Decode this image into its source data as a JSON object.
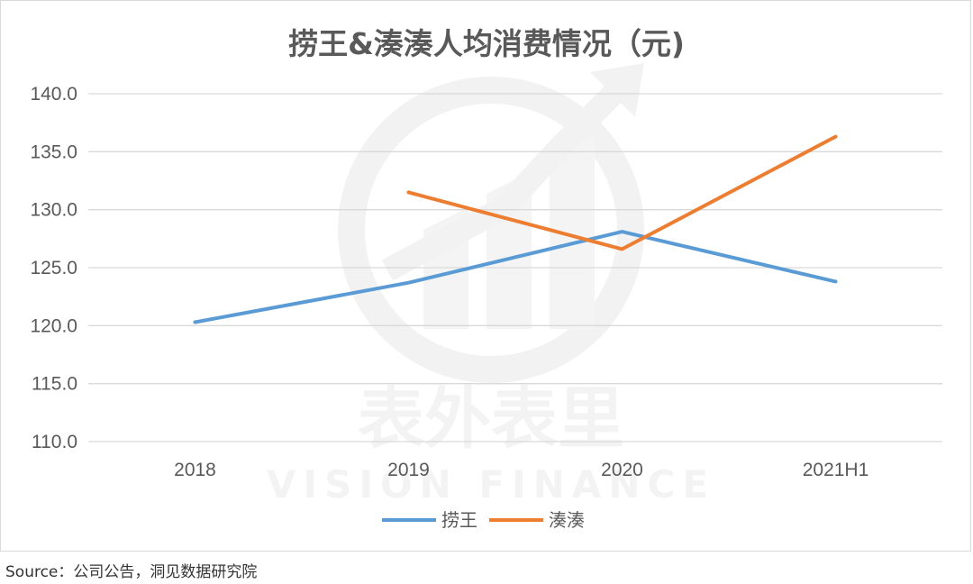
{
  "chart_data": {
    "type": "line",
    "title": "捞王&湊湊人均消费情况（元)",
    "categories": [
      "2018",
      "2019",
      "2020",
      "2021H1"
    ],
    "ylim": [
      110,
      140
    ],
    "ytick_labels": [
      "140.0",
      "135.0",
      "130.0",
      "125.0",
      "120.0",
      "115.0",
      "110.0"
    ],
    "grid": true,
    "legend_position": "bottom",
    "series": [
      {
        "name": "捞王",
        "color": "#5b9bd5",
        "values": [
          120.3,
          123.7,
          128.1,
          123.8
        ]
      },
      {
        "name": "湊湊",
        "color": "#ed7d31",
        "values": [
          null,
          131.5,
          126.6,
          136.3
        ]
      }
    ]
  },
  "watermark": {
    "chinese": "表外表里",
    "english": "VISION FINANCE"
  },
  "source_text": "Source：公司公告，洞见数据研究院"
}
